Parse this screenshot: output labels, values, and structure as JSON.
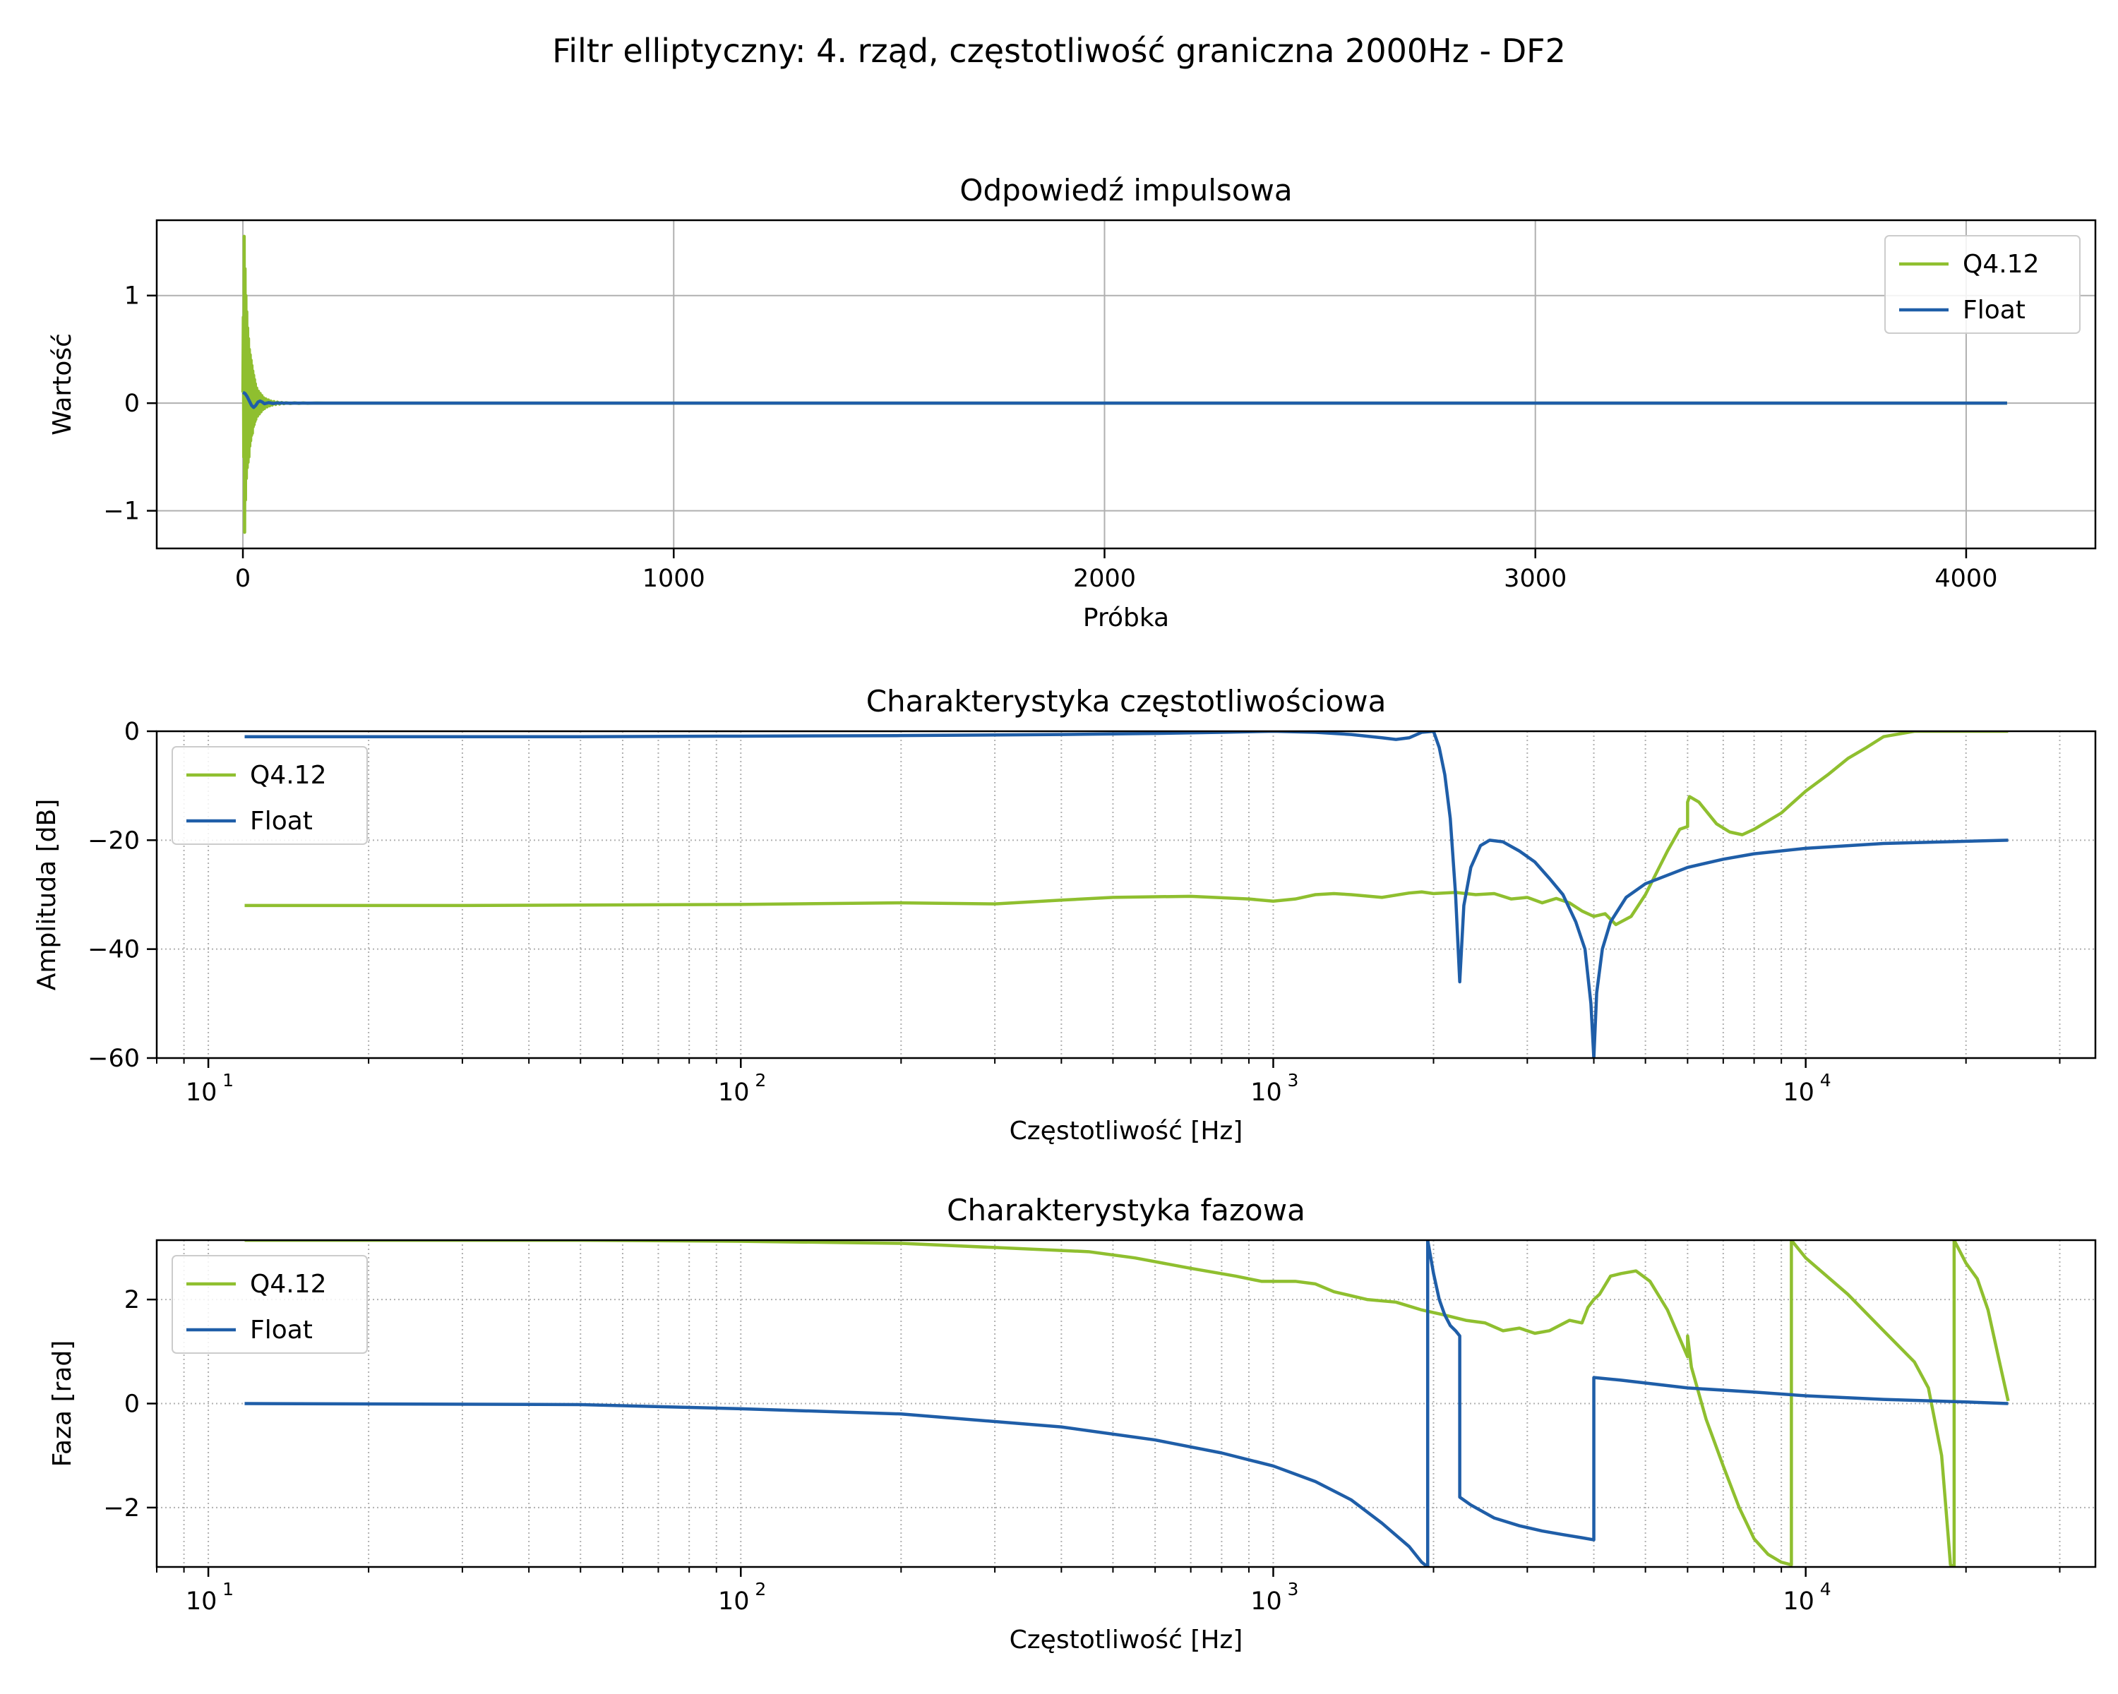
{
  "figure": {
    "suptitle": "Filtr elliptyczny: 4. rząd, częstotliwość graniczna 2000Hz - DF2"
  },
  "colors": {
    "q412": "#8fbf2f",
    "float": "#1f5ea8",
    "grid": "#b0b0b0",
    "axes": "#000000"
  },
  "chart_data": [
    {
      "type": "line",
      "title": "Odpowiedź impulsowa",
      "xlabel": "Próbka",
      "ylabel": "Wartość",
      "xscale": "linear",
      "xlim": [
        -200,
        4300
      ],
      "ylim": [
        -1.35,
        1.7
      ],
      "xticks": [
        0,
        1000,
        2000,
        3000,
        4000
      ],
      "xtick_labels": [
        "0",
        "1000",
        "2000",
        "3000",
        "4000"
      ],
      "yticks": [
        1,
        0,
        -1
      ],
      "ytick_labels": [
        "1",
        "0",
        "−1"
      ],
      "grid": "major-solid",
      "legend": "upper right",
      "series": [
        {
          "name": "Q4.12",
          "color": "#8fbf2f",
          "x": [
            0,
            1,
            2,
            3,
            4,
            5,
            6,
            7,
            8,
            9,
            10,
            11,
            12,
            13,
            14,
            15,
            16,
            17,
            18,
            19,
            20,
            21,
            22,
            23,
            24,
            25,
            26,
            27,
            28,
            29,
            30,
            32,
            34,
            36,
            38,
            40,
            42,
            44,
            46,
            48,
            50,
            53,
            56,
            59,
            62,
            65,
            68,
            72,
            76,
            80,
            85,
            90,
            95,
            100,
            110,
            120,
            130,
            140,
            150,
            170,
            190,
            220,
            260,
            300,
            4095
          ],
          "y": [
            0.1,
            0.8,
            -0.5,
            1.55,
            -1.2,
            1.25,
            -0.9,
            1.0,
            -0.7,
            0.85,
            -0.6,
            0.7,
            -0.55,
            0.6,
            -0.5,
            0.5,
            -0.4,
            0.45,
            -0.35,
            0.4,
            -0.3,
            0.35,
            -0.28,
            0.3,
            -0.22,
            0.26,
            -0.2,
            0.22,
            -0.17,
            0.18,
            -0.15,
            0.14,
            -0.12,
            0.11,
            -0.1,
            0.09,
            -0.08,
            0.07,
            -0.06,
            0.05,
            -0.05,
            0.04,
            -0.035,
            0.03,
            -0.025,
            0.02,
            -0.018,
            0.015,
            -0.012,
            0.01,
            -0.008,
            0.006,
            -0.005,
            0.004,
            -0.003,
            0.003,
            -0.002,
            0.002,
            -0.001,
            0.001,
            0,
            0,
            0,
            0,
            0
          ]
        },
        {
          "name": "Float",
          "color": "#1f5ea8",
          "x": [
            0,
            5,
            10,
            15,
            20,
            25,
            30,
            35,
            40,
            45,
            50,
            60,
            70,
            80,
            100,
            130,
            4095
          ],
          "y": [
            0.1,
            0.09,
            0.06,
            0.02,
            -0.02,
            -0.04,
            -0.02,
            0.01,
            0.02,
            0.01,
            -0.005,
            0.005,
            -0.003,
            0.002,
            0,
            0,
            0
          ]
        }
      ]
    },
    {
      "type": "line",
      "title": "Charakterystyka częstotliwościowa",
      "xlabel": "Częstotliwość [Hz]",
      "ylabel": "Amplituda [dB]",
      "xscale": "log",
      "xlim": [
        8,
        35000
      ],
      "ylim": [
        -60,
        0
      ],
      "xticks": [
        10,
        100,
        1000,
        10000
      ],
      "xtick_base": "10",
      "xtick_exponents": [
        "1",
        "2",
        "3",
        "4"
      ],
      "yticks": [
        0,
        -20,
        -40,
        -60
      ],
      "ytick_labels": [
        "0",
        "−20",
        "−40",
        "−60"
      ],
      "grid": "major-and-minor-dotted",
      "legend": "upper left",
      "series": [
        {
          "name": "Q4.12",
          "color": "#8fbf2f",
          "x": [
            11.7,
            30,
            100,
            200,
            300,
            400,
            500,
            700,
            900,
            1000,
            1100,
            1200,
            1300,
            1400,
            1600,
            1800,
            1900,
            2000,
            2200,
            2400,
            2600,
            2800,
            3000,
            3200,
            3400,
            3600,
            3800,
            4000,
            4200,
            4400,
            4700,
            5000,
            5500,
            5800,
            6000,
            6000,
            6050,
            6300,
            6800,
            7200,
            7600,
            8000,
            9000,
            10000,
            11000,
            12000,
            13000,
            14000,
            16000,
            20000,
            24000
          ],
          "y": [
            -32,
            -32,
            -31.8,
            -31.5,
            -31.7,
            -31,
            -30.5,
            -30.3,
            -30.8,
            -31.2,
            -30.8,
            -30,
            -29.8,
            -30,
            -30.5,
            -29.7,
            -29.5,
            -29.8,
            -29.6,
            -30,
            -29.8,
            -30.8,
            -30.5,
            -31.5,
            -30.7,
            -31.5,
            -33,
            -34,
            -33.5,
            -35.5,
            -34,
            -30,
            -22,
            -18,
            -17.5,
            -13,
            -12,
            -13,
            -17,
            -18.5,
            -19,
            -18,
            -15,
            -11,
            -8,
            -5,
            -3,
            -1,
            0,
            0,
            0
          ]
        },
        {
          "name": "Float",
          "color": "#1f5ea8",
          "x": [
            11.7,
            50,
            100,
            200,
            400,
            600,
            800,
            1000,
            1200,
            1400,
            1600,
            1700,
            1800,
            1900,
            2000,
            2050,
            2100,
            2150,
            2200,
            2240,
            2280,
            2350,
            2450,
            2550,
            2700,
            2900,
            3100,
            3300,
            3500,
            3700,
            3850,
            3950,
            4000,
            4050,
            4150,
            4300,
            4600,
            5000,
            6000,
            7000,
            8000,
            10000,
            14000,
            20000,
            24000
          ],
          "y": [
            -1,
            -1,
            -0.9,
            -0.8,
            -0.6,
            -0.4,
            -0.2,
            0,
            -0.2,
            -0.6,
            -1.2,
            -1.5,
            -1.2,
            -0.2,
            0,
            -3,
            -8,
            -16,
            -30,
            -46,
            -32,
            -25,
            -21,
            -20,
            -20.3,
            -22,
            -24,
            -27,
            -30,
            -35,
            -40,
            -50,
            -60,
            -48,
            -40,
            -35,
            -30.5,
            -28,
            -25,
            -23.5,
            -22.5,
            -21.5,
            -20.6,
            -20.2,
            -20
          ]
        }
      ]
    },
    {
      "type": "line",
      "title": "Charakterystyka fazowa",
      "xlabel": "Częstotliwość [Hz]",
      "ylabel": "Faza [rad]",
      "xscale": "log",
      "xlim": [
        8,
        35000
      ],
      "ylim": [
        -3.1416,
        3.1416
      ],
      "xticks": [
        10,
        100,
        1000,
        10000
      ],
      "xtick_base": "10",
      "xtick_exponents": [
        "1",
        "2",
        "3",
        "4"
      ],
      "yticks": [
        2,
        0,
        -2
      ],
      "ytick_labels": [
        "2",
        "0",
        "−2"
      ],
      "grid": "major-and-minor-dotted",
      "legend": "upper left",
      "series": [
        {
          "name": "Q4.12",
          "color": "#8fbf2f",
          "x": [
            11.7,
            50,
            100,
            200,
            300,
            450,
            550,
            700,
            850,
            950,
            1100,
            1200,
            1300,
            1500,
            1700,
            1900,
            2100,
            2300,
            2500,
            2700,
            2900,
            3100,
            3300,
            3600,
            3800,
            3900,
            4000,
            4100,
            4300,
            4500,
            4800,
            5100,
            5500,
            6000,
            6000,
            6100,
            6500,
            7000,
            7500,
            8000,
            8500,
            9000,
            9400,
            9400,
            10000,
            12000,
            14000,
            16000,
            17000,
            18000,
            18500,
            18700,
            19000,
            19000,
            20000,
            21000,
            22000,
            23000,
            24000
          ],
          "y": [
            3.14,
            3.14,
            3.12,
            3.08,
            3.0,
            2.92,
            2.8,
            2.6,
            2.45,
            2.35,
            2.35,
            2.3,
            2.15,
            2.0,
            1.95,
            1.8,
            1.7,
            1.6,
            1.55,
            1.4,
            1.45,
            1.35,
            1.4,
            1.6,
            1.55,
            1.85,
            2.0,
            2.1,
            2.45,
            2.5,
            2.55,
            2.35,
            1.8,
            0.9,
            1.3,
            0.7,
            -0.3,
            -1.2,
            -2.0,
            -2.6,
            -2.9,
            -3.05,
            -3.1,
            3.14,
            2.8,
            2.1,
            1.4,
            0.8,
            0.3,
            -1.0,
            -2.5,
            -3.1,
            -3.14,
            3.14,
            2.7,
            2.4,
            1.8,
            0.9,
            0.05
          ]
        },
        {
          "name": "Float",
          "color": "#1f5ea8",
          "x": [
            11.7,
            50,
            100,
            200,
            400,
            600,
            800,
            1000,
            1200,
            1400,
            1600,
            1800,
            1900,
            1950,
            1950,
            2000,
            2050,
            2100,
            2150,
            2200,
            2240,
            2240,
            2350,
            2600,
            2900,
            3200,
            3500,
            3800,
            4000,
            4000,
            4500,
            6000,
            8000,
            10000,
            14000,
            20000,
            24000
          ],
          "y": [
            0,
            -0.02,
            -0.1,
            -0.2,
            -0.45,
            -0.7,
            -0.95,
            -1.2,
            -1.5,
            -1.85,
            -2.3,
            -2.75,
            -3.05,
            -3.14,
            3.14,
            2.5,
            2.0,
            1.7,
            1.5,
            1.4,
            1.3,
            -1.8,
            -1.95,
            -2.2,
            -2.35,
            -2.45,
            -2.52,
            -2.58,
            -2.62,
            0.5,
            0.45,
            0.3,
            0.22,
            0.15,
            0.08,
            0.03,
            0
          ]
        }
      ]
    }
  ]
}
